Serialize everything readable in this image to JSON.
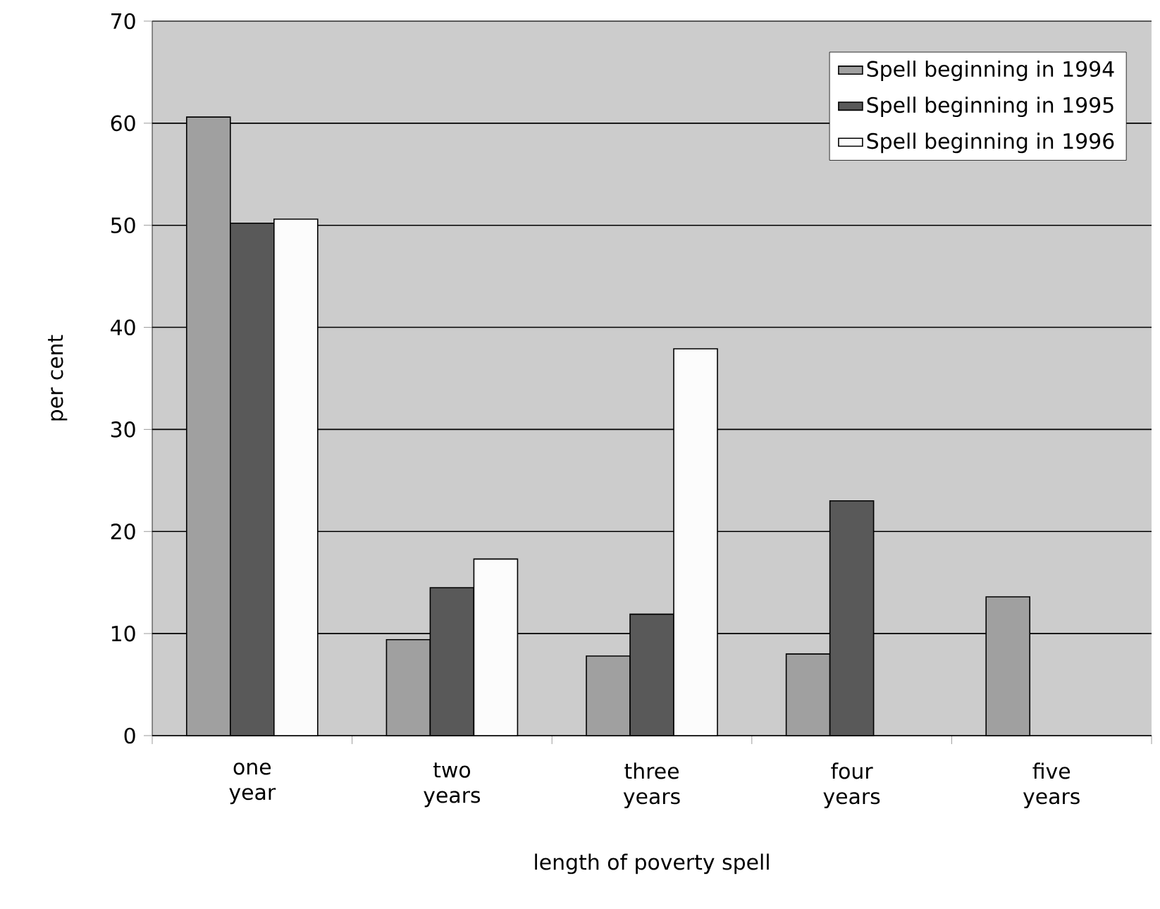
{
  "chart_data": {
    "type": "bar",
    "xlabel": "length of poverty spell",
    "ylabel": "per cent",
    "categories": [
      "one year",
      "two years",
      "three years",
      "four years",
      "five years"
    ],
    "series": [
      {
        "name": "Spell beginning in 1994",
        "color": "#a0a0a0",
        "values": [
          60.6,
          9.4,
          7.8,
          8.0,
          13.6
        ]
      },
      {
        "name": "Spell beginning in 1995",
        "color": "#595959",
        "values": [
          50.2,
          14.5,
          11.9,
          23.0,
          null
        ]
      },
      {
        "name": "Spell beginning in 1996",
        "color": "#fcfcfc",
        "values": [
          50.6,
          17.3,
          37.9,
          null,
          null
        ]
      }
    ],
    "ylim": [
      0,
      70
    ],
    "yticks": [
      0,
      10,
      20,
      30,
      40,
      50,
      60,
      70
    ],
    "grid": "y",
    "legend": "top right"
  }
}
